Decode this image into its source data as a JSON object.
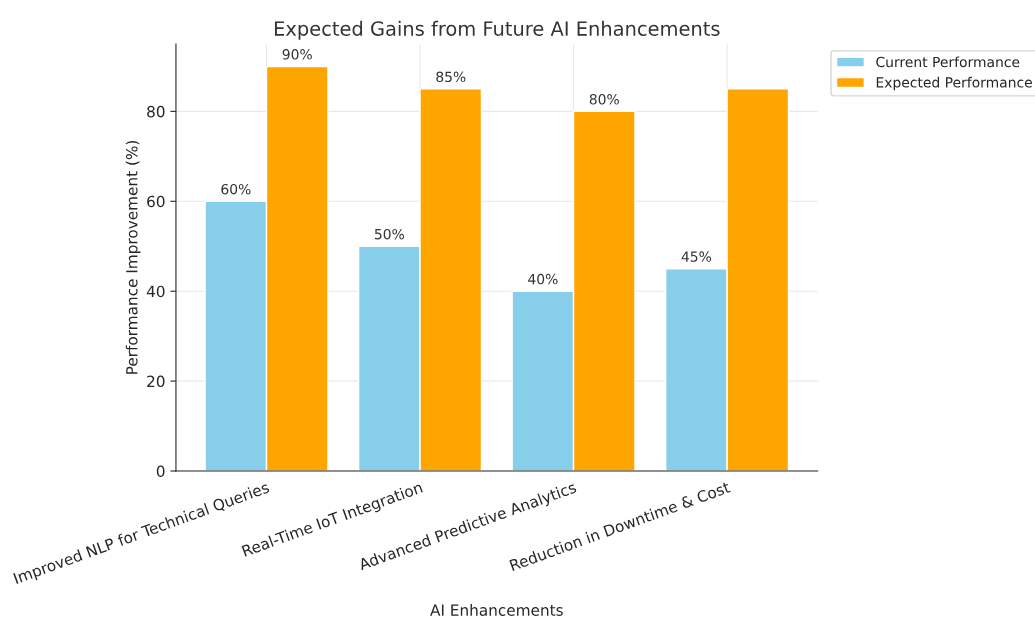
{
  "chart_data": {
    "type": "bar",
    "title": "Expected Gains from Future AI Enhancements",
    "xlabel": "AI Enhancements",
    "ylabel": "Performance Improvement (%)",
    "categories": [
      "Improved NLP for Technical Queries",
      "Real-Time IoT Integration",
      "Advanced Predictive Analytics",
      "Reduction in Downtime & Cost"
    ],
    "series": [
      {
        "name": "Current Performance",
        "color": "#87ceeb",
        "values": [
          60,
          50,
          40,
          45
        ],
        "value_labels": [
          "60%",
          "50%",
          "40%",
          "45%"
        ]
      },
      {
        "name": "Expected Performance",
        "color": "#ffa500",
        "values": [
          90,
          85,
          80,
          85
        ],
        "value_labels": [
          "90%",
          "85%",
          "80%",
          null
        ]
      }
    ],
    "ylim": [
      0,
      95
    ],
    "yticks": [
      0,
      20,
      40,
      60,
      80
    ],
    "grid": true,
    "legend": "top right"
  }
}
